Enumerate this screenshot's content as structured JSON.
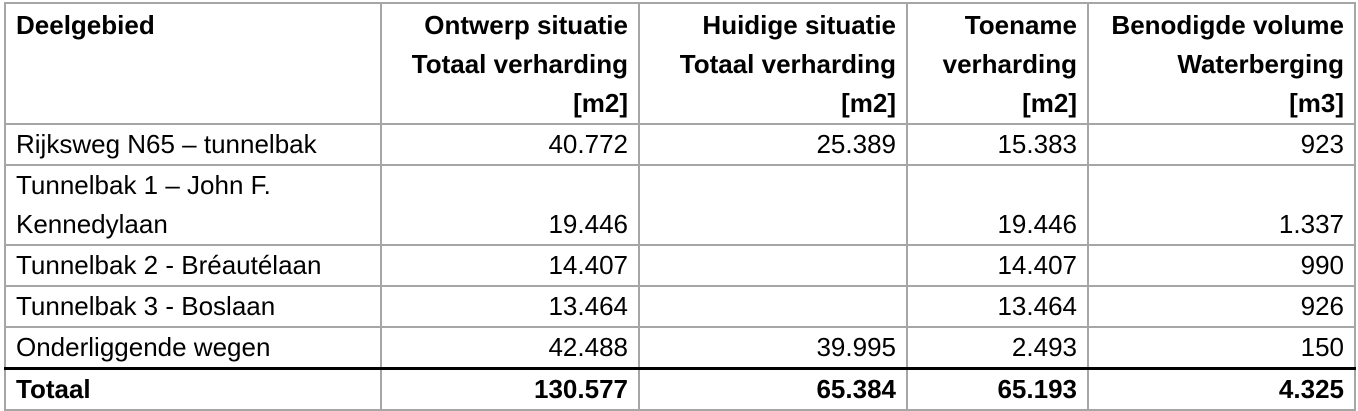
{
  "table": {
    "headers": [
      {
        "lines": [
          "Deelgebied"
        ]
      },
      {
        "lines": [
          "Ontwerp situatie",
          "Totaal verharding",
          "[m2]"
        ]
      },
      {
        "lines": [
          "Huidige situatie",
          "Totaal verharding",
          "[m2]"
        ]
      },
      {
        "lines": [
          "Toename",
          "verharding",
          "[m2]"
        ]
      },
      {
        "lines": [
          "Benodigde volume",
          "Waterberging",
          "[m3]"
        ]
      }
    ],
    "rows": [
      {
        "name_lines": [
          "Rijksweg N65 – tunnelbak"
        ],
        "ontwerp": "40.772",
        "huidig": "25.389",
        "toename": "15.383",
        "volume": "923"
      },
      {
        "name_lines": [
          "Tunnelbak 1 – John F.",
          "Kennedylaan"
        ],
        "ontwerp": "19.446",
        "huidig": "",
        "toename": "19.446",
        "volume": "1.337"
      },
      {
        "name_lines": [
          "Tunnelbak 2 - Bréautélaan"
        ],
        "ontwerp": "14.407",
        "huidig": "",
        "toename": "14.407",
        "volume": "990"
      },
      {
        "name_lines": [
          "Tunnelbak 3 - Boslaan"
        ],
        "ontwerp": "13.464",
        "huidig": "",
        "toename": "13.464",
        "volume": "926"
      },
      {
        "name_lines": [
          "Onderliggende wegen"
        ],
        "ontwerp": "42.488",
        "huidig": "39.995",
        "toename": "2.493",
        "volume": "150"
      }
    ],
    "total": {
      "label": "Totaal",
      "ontwerp": "130.577",
      "huidig": "65.384",
      "toename": "65.193",
      "volume": "4.325"
    }
  }
}
